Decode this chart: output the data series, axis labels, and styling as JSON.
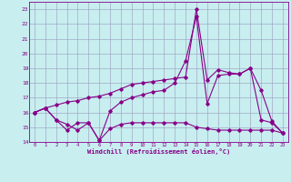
{
  "x_ticks": [
    0,
    1,
    2,
    3,
    4,
    5,
    6,
    7,
    8,
    9,
    10,
    11,
    12,
    13,
    14,
    15,
    16,
    17,
    18,
    19,
    20,
    21,
    22,
    23
  ],
  "line1": {
    "x": [
      0,
      1,
      2,
      3,
      4,
      5,
      6,
      7,
      8,
      9,
      10,
      11,
      12,
      13,
      14,
      15,
      16,
      17,
      18,
      19,
      20,
      21,
      22,
      23
    ],
    "y": [
      16.0,
      16.3,
      15.5,
      14.8,
      15.3,
      15.3,
      14.1,
      16.1,
      16.7,
      17.0,
      17.2,
      17.4,
      17.5,
      18.0,
      19.5,
      22.5,
      16.6,
      18.5,
      18.6,
      18.6,
      19.0,
      15.5,
      15.3,
      14.6
    ]
  },
  "line2": {
    "x": [
      0,
      1,
      2,
      3,
      4,
      5,
      6,
      7,
      8,
      9,
      10,
      11,
      12,
      13,
      14,
      15,
      16,
      17,
      18,
      19,
      20,
      21,
      22,
      23
    ],
    "y": [
      16.0,
      16.3,
      15.5,
      15.2,
      14.8,
      15.3,
      14.1,
      14.9,
      15.2,
      15.3,
      15.3,
      15.3,
      15.3,
      15.3,
      15.3,
      15.0,
      14.9,
      14.8,
      14.8,
      14.8,
      14.8,
      14.8,
      14.8,
      14.6
    ]
  },
  "line3": {
    "x": [
      0,
      1,
      2,
      3,
      4,
      5,
      6,
      7,
      8,
      9,
      10,
      11,
      12,
      13,
      14,
      15,
      16,
      17,
      18,
      19,
      20,
      21,
      22,
      23
    ],
    "y": [
      16.0,
      16.3,
      16.5,
      16.7,
      16.8,
      17.0,
      17.1,
      17.3,
      17.6,
      17.9,
      18.0,
      18.1,
      18.2,
      18.3,
      18.4,
      23.0,
      18.2,
      18.9,
      18.7,
      18.6,
      19.0,
      17.5,
      15.4,
      14.6
    ]
  },
  "ylim": [
    14,
    23.5
  ],
  "xlim": [
    -0.5,
    23.5
  ],
  "yticks": [
    14,
    15,
    16,
    17,
    18,
    19,
    20,
    21,
    22,
    23
  ],
  "color": "#880088",
  "bg_color": "#c8eef0",
  "grid_color": "#9999bb",
  "xlabel": "Windchill (Refroidissement éolien,°C)",
  "figsize": [
    3.2,
    2.0
  ],
  "dpi": 100
}
